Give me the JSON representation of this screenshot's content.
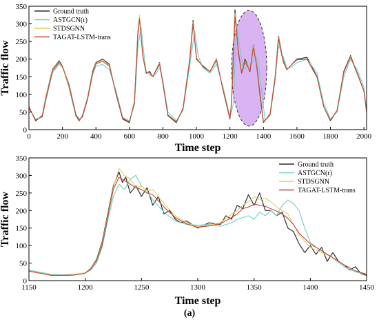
{
  "caption": "(a)",
  "colors": {
    "ground_truth": "#2b2b2b",
    "astgcn": "#6fd0c8",
    "stdsgnn": "#e3cf62",
    "tagat": "#c8463c",
    "highlight_fill": "#d9b3f2",
    "highlight_stroke": "#333333"
  },
  "chart_data": [
    {
      "type": "line",
      "xlabel": "Time step",
      "ylabel": "Traffic flow",
      "xlim": [
        0,
        2016
      ],
      "ylim": [
        0,
        350
      ],
      "xticks": [
        0,
        200,
        400,
        600,
        800,
        1000,
        1200,
        1400,
        1600,
        1800,
        2000
      ],
      "yticks": [
        0,
        50,
        100,
        150,
        200,
        250,
        300,
        350
      ],
      "legend_position": "top-left",
      "highlight_region": {
        "x_range": [
          1210,
          1420
        ],
        "y_range": [
          10,
          338
        ]
      },
      "series": [
        {
          "name": "Ground truth",
          "key": "ground_truth",
          "x": [
            0,
            40,
            80,
            100,
            140,
            180,
            200,
            240,
            280,
            300,
            320,
            350,
            380,
            400,
            440,
            480,
            520,
            560,
            600,
            630,
            650,
            660,
            680,
            700,
            720,
            740,
            760,
            780,
            800,
            830,
            880,
            920,
            960,
            980,
            1000,
            1040,
            1080,
            1120,
            1160,
            1200,
            1210,
            1230,
            1250,
            1270,
            1290,
            1320,
            1340,
            1360,
            1380,
            1400,
            1440,
            1470,
            1490,
            1510,
            1520,
            1540,
            1560,
            1600,
            1660,
            1720,
            1760,
            1800,
            1840,
            1880,
            1920,
            1960,
            2000,
            2016
          ],
          "y": [
            65,
            25,
            40,
            90,
            170,
            195,
            180,
            120,
            40,
            25,
            40,
            90,
            165,
            190,
            200,
            185,
            100,
            30,
            20,
            80,
            275,
            320,
            210,
            160,
            165,
            150,
            170,
            190,
            130,
            40,
            20,
            60,
            200,
            310,
            200,
            180,
            165,
            200,
            110,
            30,
            80,
            340,
            220,
            160,
            200,
            165,
            240,
            180,
            95,
            20,
            45,
            150,
            265,
            215,
            195,
            170,
            180,
            200,
            205,
            150,
            65,
            25,
            55,
            165,
            210,
            160,
            110,
            50
          ]
        },
        {
          "name": "ASTGCN(r)",
          "key": "astgcn",
          "x": [
            0,
            40,
            80,
            100,
            140,
            180,
            200,
            240,
            280,
            300,
            320,
            350,
            380,
            400,
            440,
            480,
            520,
            560,
            600,
            630,
            650,
            670,
            690,
            700,
            720,
            740,
            760,
            780,
            800,
            830,
            880,
            920,
            960,
            990,
            1010,
            1040,
            1080,
            1120,
            1160,
            1200,
            1220,
            1240,
            1260,
            1280,
            1300,
            1320,
            1350,
            1370,
            1390,
            1410,
            1440,
            1470,
            1490,
            1520,
            1540,
            1560,
            1600,
            1660,
            1720,
            1760,
            1800,
            1840,
            1880,
            1920,
            1960,
            2000,
            2016
          ],
          "y": [
            60,
            30,
            35,
            80,
            160,
            185,
            175,
            130,
            45,
            30,
            35,
            85,
            155,
            180,
            185,
            170,
            110,
            35,
            25,
            70,
            230,
            290,
            200,
            165,
            155,
            150,
            160,
            175,
            140,
            50,
            25,
            55,
            180,
            280,
            210,
            175,
            160,
            185,
            120,
            35,
            70,
            300,
            230,
            170,
            180,
            170,
            215,
            190,
            110,
            25,
            40,
            140,
            240,
            205,
            175,
            175,
            190,
            200,
            160,
            75,
            30,
            50,
            150,
            200,
            170,
            120,
            55
          ]
        },
        {
          "name": "STDSGNN",
          "key": "stdsgnn",
          "x": [
            0,
            40,
            80,
            100,
            140,
            180,
            200,
            240,
            280,
            300,
            320,
            350,
            380,
            400,
            440,
            480,
            520,
            560,
            600,
            630,
            650,
            660,
            680,
            700,
            720,
            740,
            760,
            780,
            800,
            830,
            880,
            920,
            960,
            980,
            1000,
            1040,
            1080,
            1120,
            1160,
            1200,
            1210,
            1230,
            1250,
            1270,
            1290,
            1320,
            1340,
            1360,
            1380,
            1400,
            1440,
            1470,
            1490,
            1510,
            1520,
            1540,
            1560,
            1600,
            1660,
            1720,
            1760,
            1800,
            1840,
            1880,
            1920,
            1960,
            2000,
            2016
          ],
          "y": [
            62,
            28,
            38,
            88,
            168,
            192,
            178,
            122,
            42,
            27,
            38,
            88,
            162,
            188,
            198,
            182,
            102,
            32,
            22,
            78,
            270,
            325,
            212,
            162,
            162,
            150,
            168,
            188,
            132,
            42,
            22,
            58,
            198,
            305,
            205,
            178,
            165,
            198,
            112,
            32,
            78,
            330,
            225,
            160,
            195,
            168,
            238,
            182,
            98,
            22,
            43,
            148,
            262,
            212,
            192,
            170,
            180,
            198,
            200,
            148,
            65,
            27,
            55,
            162,
            208,
            158,
            108,
            48
          ]
        },
        {
          "name": "TAGAT-LSTM-trans",
          "key": "tagat",
          "x": [
            0,
            40,
            80,
            100,
            140,
            180,
            200,
            240,
            280,
            300,
            320,
            350,
            380,
            400,
            440,
            480,
            520,
            560,
            600,
            630,
            650,
            660,
            680,
            700,
            720,
            740,
            760,
            780,
            800,
            830,
            880,
            920,
            960,
            980,
            1000,
            1040,
            1080,
            1120,
            1160,
            1200,
            1210,
            1230,
            1250,
            1270,
            1290,
            1320,
            1340,
            1360,
            1380,
            1400,
            1440,
            1470,
            1490,
            1510,
            1520,
            1540,
            1560,
            1600,
            1660,
            1720,
            1760,
            1800,
            1840,
            1880,
            1920,
            1960,
            2000,
            2016
          ],
          "y": [
            63,
            27,
            38,
            85,
            165,
            190,
            180,
            125,
            42,
            28,
            38,
            86,
            160,
            186,
            194,
            180,
            104,
            32,
            22,
            76,
            262,
            315,
            208,
            162,
            162,
            150,
            168,
            185,
            132,
            42,
            22,
            58,
            195,
            300,
            202,
            178,
            164,
            196,
            112,
            32,
            76,
            320,
            225,
            160,
            192,
            168,
            232,
            182,
            100,
            22,
            43,
            146,
            258,
            210,
            190,
            170,
            180,
            198,
            200,
            148,
            65,
            27,
            55,
            162,
            206,
            158,
            110,
            50
          ]
        }
      ]
    },
    {
      "type": "line",
      "xlabel": "Time step",
      "ylabel": "Traffic flow",
      "xlim": [
        1150,
        1450
      ],
      "ylim": [
        0,
        350
      ],
      "xticks": [
        1150,
        1200,
        1250,
        1300,
        1350,
        1400,
        1450
      ],
      "yticks": [
        0,
        50,
        100,
        150,
        200,
        250,
        300,
        350
      ],
      "legend_position": "top-right",
      "series": [
        {
          "name": "Ground truth",
          "key": "ground_truth",
          "x": [
            1150,
            1160,
            1170,
            1180,
            1190,
            1200,
            1205,
            1210,
            1215,
            1220,
            1225,
            1230,
            1233,
            1236,
            1240,
            1245,
            1250,
            1255,
            1260,
            1265,
            1270,
            1275,
            1280,
            1285,
            1290,
            1300,
            1310,
            1320,
            1325,
            1330,
            1335,
            1340,
            1345,
            1350,
            1355,
            1360,
            1365,
            1370,
            1375,
            1380,
            1385,
            1390,
            1395,
            1400,
            1405,
            1410,
            1415,
            1420,
            1425,
            1430,
            1435,
            1440,
            1445,
            1450
          ],
          "y": [
            28,
            22,
            15,
            15,
            16,
            22,
            35,
            60,
            110,
            190,
            270,
            310,
            280,
            295,
            250,
            270,
            240,
            265,
            215,
            240,
            190,
            200,
            175,
            165,
            170,
            150,
            165,
            160,
            185,
            175,
            215,
            205,
            245,
            215,
            250,
            200,
            200,
            185,
            195,
            150,
            140,
            105,
            80,
            100,
            75,
            95,
            55,
            80,
            55,
            45,
            30,
            40,
            20,
            15
          ]
        },
        {
          "name": "ASTGCN(r)",
          "key": "astgcn",
          "x": [
            1150,
            1160,
            1170,
            1180,
            1190,
            1200,
            1205,
            1210,
            1215,
            1220,
            1225,
            1230,
            1235,
            1240,
            1245,
            1250,
            1255,
            1260,
            1270,
            1280,
            1290,
            1300,
            1310,
            1320,
            1330,
            1335,
            1340,
            1345,
            1350,
            1355,
            1360,
            1365,
            1370,
            1375,
            1380,
            1385,
            1390,
            1395,
            1400,
            1405,
            1410,
            1420,
            1430,
            1440,
            1450
          ],
          "y": [
            30,
            24,
            18,
            17,
            18,
            22,
            30,
            50,
            95,
            170,
            240,
            275,
            260,
            290,
            300,
            270,
            255,
            230,
            195,
            170,
            160,
            158,
            160,
            155,
            165,
            175,
            180,
            185,
            175,
            195,
            185,
            200,
            185,
            215,
            230,
            220,
            200,
            150,
            110,
            95,
            85,
            65,
            40,
            25,
            18
          ]
        },
        {
          "name": "STDSGNN",
          "key": "stdsgnn",
          "x": [
            1150,
            1160,
            1170,
            1180,
            1190,
            1200,
            1205,
            1210,
            1215,
            1220,
            1225,
            1230,
            1235,
            1240,
            1245,
            1250,
            1255,
            1260,
            1270,
            1280,
            1290,
            1300,
            1310,
            1320,
            1330,
            1335,
            1340,
            1345,
            1350,
            1355,
            1360,
            1365,
            1370,
            1375,
            1380,
            1385,
            1390,
            1400,
            1410,
            1420,
            1430,
            1440,
            1450
          ],
          "y": [
            28,
            22,
            16,
            15,
            17,
            22,
            34,
            58,
            105,
            185,
            265,
            320,
            300,
            290,
            265,
            270,
            255,
            260,
            220,
            185,
            165,
            155,
            158,
            165,
            190,
            200,
            215,
            225,
            240,
            230,
            235,
            225,
            210,
            200,
            190,
            160,
            130,
            95,
            80,
            65,
            45,
            28,
            18
          ]
        },
        {
          "name": "TAGAT-LSTM-trans",
          "key": "tagat",
          "x": [
            1150,
            1160,
            1170,
            1180,
            1190,
            1200,
            1205,
            1210,
            1215,
            1220,
            1225,
            1230,
            1235,
            1240,
            1245,
            1250,
            1255,
            1260,
            1270,
            1280,
            1290,
            1300,
            1310,
            1320,
            1330,
            1335,
            1340,
            1345,
            1350,
            1355,
            1360,
            1365,
            1370,
            1375,
            1380,
            1385,
            1390,
            1400,
            1410,
            1420,
            1430,
            1440,
            1450
          ],
          "y": [
            27,
            21,
            15,
            15,
            16,
            21,
            33,
            56,
            100,
            180,
            260,
            295,
            285,
            275,
            265,
            260,
            250,
            245,
            210,
            180,
            162,
            152,
            156,
            162,
            180,
            190,
            205,
            210,
            218,
            215,
            212,
            205,
            198,
            190,
            178,
            160,
            135,
            105,
            85,
            65,
            45,
            28,
            18
          ]
        }
      ]
    }
  ]
}
